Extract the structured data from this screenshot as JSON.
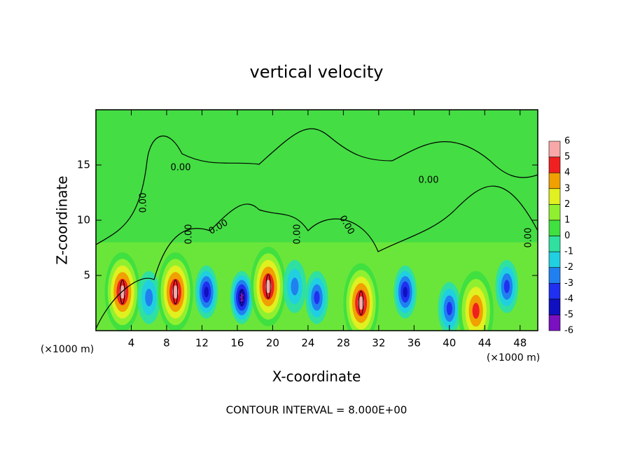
{
  "chart_data": {
    "type": "contour",
    "title": "vertical velocity",
    "xlabel": "X-coordinate",
    "ylabel": "Z-coordinate",
    "x_unit": "(×1000 m)",
    "x_unit_right": "(×1000 m)",
    "annotation": "CONTOUR INTERVAL = 8.000E+00",
    "xlim": [
      0,
      50
    ],
    "xticks": [
      4,
      8,
      12,
      16,
      20,
      24,
      28,
      32,
      36,
      40,
      44,
      48
    ],
    "ylim": [
      0,
      20
    ],
    "yticks": [
      5,
      10,
      15
    ],
    "background_color": "#44dd44",
    "colorbar_ticks": [
      -6,
      -5,
      -4,
      -3,
      -2,
      -1,
      0,
      1,
      2,
      3,
      4,
      5,
      6
    ],
    "colorbar_colors": [
      "#7a10c0",
      "#1010c0",
      "#2030f0",
      "#2080f0",
      "#20d0e0",
      "#30e0a0",
      "#40e040",
      "#90f030",
      "#e0f020",
      "#f0a000",
      "#f02020",
      "#f8a8a8"
    ],
    "contour_labels": [
      "0.00",
      "0.00",
      "0.00",
      "0.00",
      "0.00",
      "0.00",
      "0.00",
      "0.00"
    ],
    "features": [
      {
        "x": 3,
        "z": 3.5,
        "value": 6
      },
      {
        "x": 6,
        "z": 3,
        "value": -3
      },
      {
        "x": 9,
        "z": 3.5,
        "value": 6
      },
      {
        "x": 12.5,
        "z": 3.5,
        "value": -5
      },
      {
        "x": 16.5,
        "z": 3,
        "value": -6
      },
      {
        "x": 19.5,
        "z": 4,
        "value": 6
      },
      {
        "x": 22.5,
        "z": 4,
        "value": -3
      },
      {
        "x": 25,
        "z": 3,
        "value": -4
      },
      {
        "x": 30,
        "z": 2.5,
        "value": 6
      },
      {
        "x": 35,
        "z": 3.5,
        "value": -5
      },
      {
        "x": 40,
        "z": 2,
        "value": -4
      },
      {
        "x": 43,
        "z": 1.8,
        "value": 5
      },
      {
        "x": 46.5,
        "z": 4,
        "value": -4
      }
    ]
  }
}
